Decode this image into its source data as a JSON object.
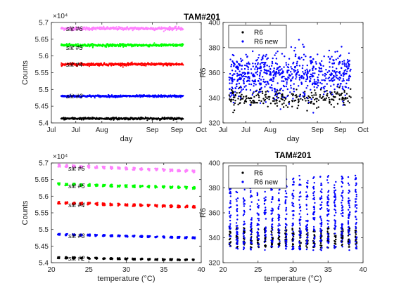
{
  "figure_title": "TAM#201",
  "chart_data": [
    {
      "id": "p1",
      "type": "scatter",
      "title": "",
      "xlabel": "day",
      "ylabel": "Counts",
      "y_exponent_label": "×10⁴",
      "xlim": [
        0,
        92
      ],
      "ylim": [
        54000,
        57000
      ],
      "x_ticks": [
        {
          "v": 0,
          "label": "Jul"
        },
        {
          "v": 15,
          "label": "Jul"
        },
        {
          "v": 31,
          "label": "Aug"
        },
        {
          "v": 62,
          "label": "Sep"
        },
        {
          "v": 77,
          "label": "Sep"
        },
        {
          "v": 92,
          "label": "Oct"
        }
      ],
      "y_ticks": [
        {
          "v": 54000,
          "label": "5.4"
        },
        {
          "v": 54500,
          "label": "5.45"
        },
        {
          "v": 55000,
          "label": "5.5"
        },
        {
          "v": 55500,
          "label": "5.55"
        },
        {
          "v": 56000,
          "label": "5.6"
        },
        {
          "v": 56500,
          "label": "5.65"
        },
        {
          "v": 57000,
          "label": "5.7"
        }
      ],
      "series": [
        {
          "name": "slit #6",
          "color": "#ff80ff",
          "x_range": [
            6,
            81
          ],
          "y": 56820,
          "spread": 60
        },
        {
          "name": "slit #5",
          "color": "#00ff00",
          "x_range": [
            6,
            81
          ],
          "y": 56320,
          "spread": 50
        },
        {
          "name": "slit #4",
          "color": "#ff0000",
          "x_range": [
            6,
            81
          ],
          "y": 55750,
          "spread": 50
        },
        {
          "name": "slit #3",
          "color": "#0000ff",
          "x_range": [
            6,
            81
          ],
          "y": 54800,
          "spread": 40
        },
        {
          "name": "slit #2",
          "color": "#000000",
          "x_range": [
            6,
            81
          ],
          "y": 54130,
          "spread": 40
        }
      ],
      "annotations": [
        "slit #6",
        "slit #5",
        "slit #4",
        "slit #3"
      ]
    },
    {
      "id": "p2",
      "type": "scatter",
      "title": "",
      "xlabel": "day",
      "ylabel": "R6",
      "xlim": [
        0,
        92
      ],
      "ylim": [
        320,
        400
      ],
      "x_ticks": [
        {
          "v": 0,
          "label": "Jul"
        },
        {
          "v": 15,
          "label": "Jul"
        },
        {
          "v": 31,
          "label": "Aug"
        },
        {
          "v": 62,
          "label": "Sep"
        },
        {
          "v": 77,
          "label": "Sep"
        },
        {
          "v": 92,
          "label": "Oct"
        }
      ],
      "y_ticks": [
        {
          "v": 320,
          "label": "320"
        },
        {
          "v": 340,
          "label": "340"
        },
        {
          "v": 360,
          "label": "360"
        },
        {
          "v": 380,
          "label": "380"
        },
        {
          "v": 400,
          "label": "400"
        }
      ],
      "series": [
        {
          "name": "R6",
          "color": "#000000",
          "x_range": [
            4,
            84
          ],
          "y_mean": 340,
          "y_sd": 3.5,
          "n": 260
        },
        {
          "name": "R6 new",
          "color": "#0000ff",
          "x_range": [
            4,
            84
          ],
          "y_mean": 358,
          "y_sd": 9,
          "n": 700
        }
      ],
      "legend": {
        "position": "top-left",
        "entries": [
          "R6",
          "R6 new"
        ]
      }
    },
    {
      "id": "p3",
      "type": "scatter",
      "title": "",
      "xlabel": "temperature (°C)",
      "ylabel": "Counts",
      "y_exponent_label": "×10⁴",
      "xlim": [
        20,
        40
      ],
      "ylim": [
        54000,
        57000
      ],
      "x_ticks": [
        {
          "v": 20,
          "label": "20"
        },
        {
          "v": 25,
          "label": "25"
        },
        {
          "v": 30,
          "label": "30"
        },
        {
          "v": 35,
          "label": "35"
        },
        {
          "v": 40,
          "label": "40"
        }
      ],
      "y_ticks": [
        {
          "v": 54000,
          "label": "5.4"
        },
        {
          "v": 54500,
          "label": "5.45"
        },
        {
          "v": 55000,
          "label": "5.5"
        },
        {
          "v": 55500,
          "label": "5.55"
        },
        {
          "v": 56000,
          "label": "5.6"
        },
        {
          "v": 56500,
          "label": "5.65"
        },
        {
          "v": 57000,
          "label": "5.7"
        }
      ],
      "temperature_levels": [
        21,
        22,
        23,
        24,
        25,
        26,
        27,
        28,
        29,
        30,
        31,
        32,
        33,
        34,
        35,
        36,
        37,
        38,
        39
      ],
      "series": [
        {
          "name": "slit #6",
          "color": "#ff80ff",
          "y_start": 56920,
          "y_end": 56750,
          "spread": 80
        },
        {
          "name": "slit #5",
          "color": "#00ff00",
          "y_start": 56360,
          "y_end": 56250,
          "spread": 70
        },
        {
          "name": "slit #4",
          "color": "#ff0000",
          "y_start": 55800,
          "y_end": 55680,
          "spread": 70
        },
        {
          "name": "slit #3",
          "color": "#0000ff",
          "y_start": 54850,
          "y_end": 54750,
          "spread": 50
        },
        {
          "name": "slit #2",
          "color": "#000000",
          "y_start": 54150,
          "y_end": 54080,
          "spread": 50
        }
      ],
      "annotations": [
        "slit #6",
        "slit #5",
        "slit #4",
        "slit #3",
        "slit #2"
      ]
    },
    {
      "id": "p4",
      "type": "scatter",
      "title": "TAM#201",
      "xlabel": "temperature (°C)",
      "ylabel": "R6",
      "xlim": [
        20,
        40
      ],
      "ylim": [
        320,
        400
      ],
      "x_ticks": [
        {
          "v": 20,
          "label": "20"
        },
        {
          "v": 25,
          "label": "25"
        },
        {
          "v": 30,
          "label": "30"
        },
        {
          "v": 35,
          "label": "35"
        },
        {
          "v": 40,
          "label": "40"
        }
      ],
      "y_ticks": [
        {
          "v": 320,
          "label": "320"
        },
        {
          "v": 340,
          "label": "340"
        },
        {
          "v": 360,
          "label": "360"
        },
        {
          "v": 380,
          "label": "380"
        },
        {
          "v": 400,
          "label": "400"
        }
      ],
      "temperature_levels": [
        21,
        22,
        23,
        24,
        25,
        26,
        27,
        28,
        29,
        30,
        31,
        32,
        33,
        34,
        35,
        36,
        37,
        38,
        39
      ],
      "series": [
        {
          "name": "R6",
          "color": "#000000",
          "y_range": [
            332,
            348
          ]
        },
        {
          "name": "R6 new",
          "color": "#0000ff",
          "y_range": [
            330,
            390
          ]
        }
      ],
      "legend": {
        "position": "top-left",
        "entries": [
          "R6",
          "R6 new"
        ]
      }
    }
  ]
}
